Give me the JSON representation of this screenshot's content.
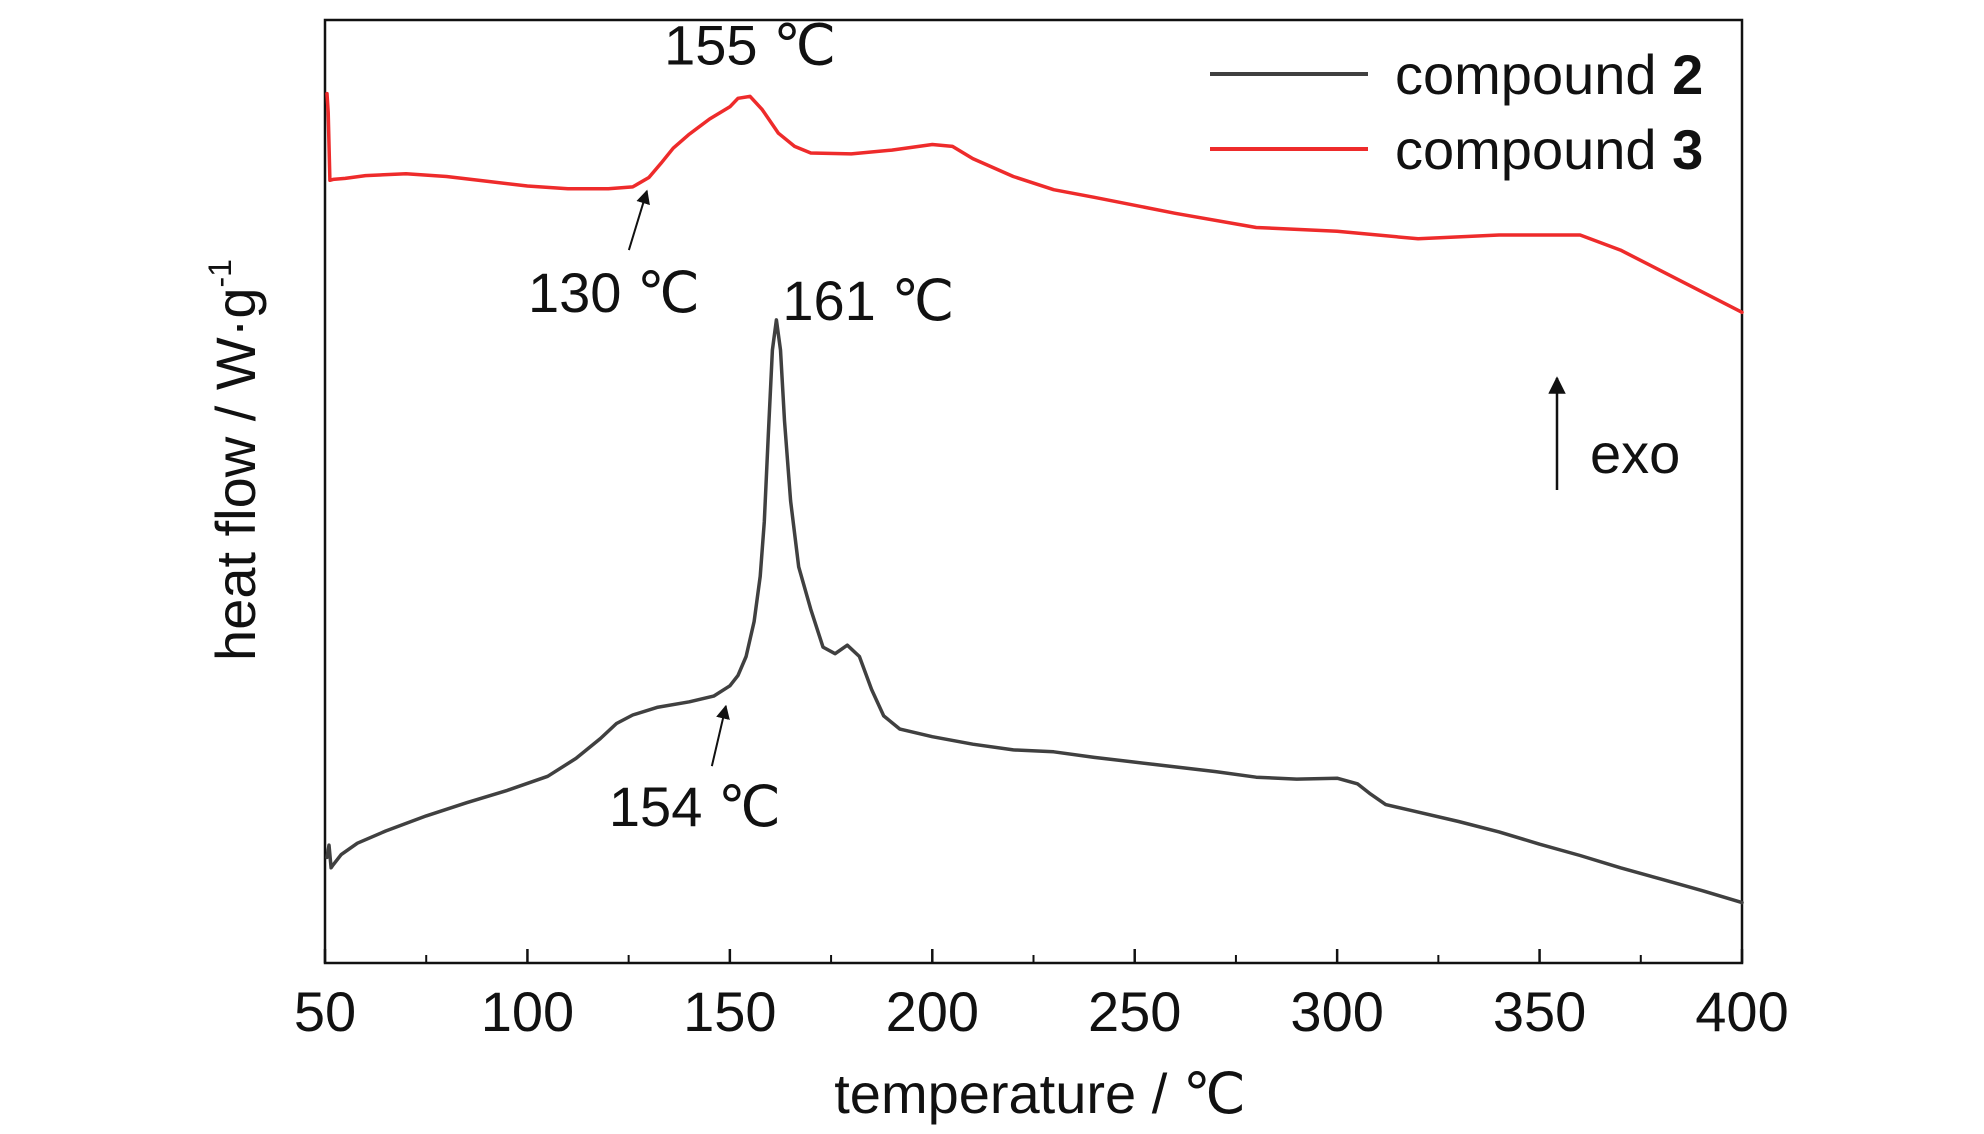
{
  "chart_data": {
    "type": "line",
    "title": "",
    "xlabel": "temperature / ℃",
    "ylabel": "heat flow / W·g",
    "ylabel_sup": "-1",
    "xlim": [
      50,
      400
    ],
    "ylim": [
      0,
      1
    ],
    "xticks": [
      50,
      100,
      150,
      200,
      250,
      300,
      350,
      400
    ],
    "xticks_minor": [
      75,
      125,
      175,
      225,
      275,
      325,
      375
    ],
    "yticks": [],
    "grid": false,
    "legend": {
      "position": "top-right"
    },
    "series": [
      {
        "name_prefix": "compound ",
        "name_bold": "2",
        "color": "#404040",
        "x": [
          50.5,
          51,
          51.5,
          52,
          54,
          58,
          65,
          75,
          85,
          95,
          105,
          112,
          118,
          122,
          126,
          132,
          140,
          146,
          150,
          152,
          154,
          156,
          157.5,
          158.5,
          159.5,
          160.5,
          161.5,
          162.5,
          163.5,
          165,
          167,
          170,
          173,
          176,
          179,
          182,
          185,
          188,
          192,
          200,
          210,
          220,
          230,
          240,
          250,
          260,
          270,
          280,
          290,
          300,
          305,
          308,
          312,
          318,
          330,
          340,
          350,
          360,
          370,
          380,
          390,
          400
        ],
        "y": [
          0.112,
          0.125,
          0.101,
          0.104,
          0.115,
          0.127,
          0.14,
          0.156,
          0.17,
          0.183,
          0.198,
          0.217,
          0.238,
          0.254,
          0.263,
          0.271,
          0.277,
          0.283,
          0.294,
          0.305,
          0.325,
          0.362,
          0.41,
          0.468,
          0.56,
          0.65,
          0.682,
          0.65,
          0.575,
          0.49,
          0.42,
          0.375,
          0.335,
          0.328,
          0.337,
          0.325,
          0.29,
          0.262,
          0.248,
          0.24,
          0.232,
          0.226,
          0.224,
          0.218,
          0.213,
          0.208,
          0.203,
          0.197,
          0.195,
          0.196,
          0.19,
          0.18,
          0.168,
          0.162,
          0.15,
          0.139,
          0.126,
          0.114,
          0.101,
          0.089,
          0.077,
          0.064
        ]
      },
      {
        "name_prefix": "compound ",
        "name_bold": "3",
        "color": "#ee2b2b",
        "x": [
          50.5,
          50.8,
          51.2,
          52,
          55,
          60,
          70,
          80,
          90,
          100,
          110,
          120,
          126,
          130,
          133,
          136,
          140,
          145,
          150,
          152,
          155,
          158,
          162,
          166,
          170,
          180,
          190,
          200,
          205,
          210,
          220,
          230,
          240,
          260,
          280,
          300,
          320,
          340,
          360,
          370,
          380,
          390,
          400
        ],
        "y": [
          0.922,
          0.902,
          0.83,
          0.831,
          0.832,
          0.835,
          0.837,
          0.834,
          0.829,
          0.824,
          0.821,
          0.821,
          0.823,
          0.833,
          0.848,
          0.864,
          0.879,
          0.895,
          0.908,
          0.917,
          0.919,
          0.905,
          0.88,
          0.866,
          0.859,
          0.858,
          0.862,
          0.868,
          0.866,
          0.853,
          0.834,
          0.82,
          0.812,
          0.795,
          0.78,
          0.776,
          0.768,
          0.772,
          0.772,
          0.756,
          0.734,
          0.712,
          0.69
        ]
      }
    ],
    "annotations": [
      {
        "text": "155 ℃",
        "anchor_x": 155,
        "anchor_y": 0.919,
        "arrow": false
      },
      {
        "text": "130 ℃",
        "anchor_x": 130,
        "anchor_y": 0.825,
        "arrow": true
      },
      {
        "text": "161 ℃",
        "anchor_x": 161,
        "anchor_y": 0.682,
        "arrow": false
      },
      {
        "text": "154 ℃",
        "anchor_x": 150,
        "anchor_y": 0.283,
        "arrow": true
      }
    ],
    "exo_label": "exo"
  }
}
